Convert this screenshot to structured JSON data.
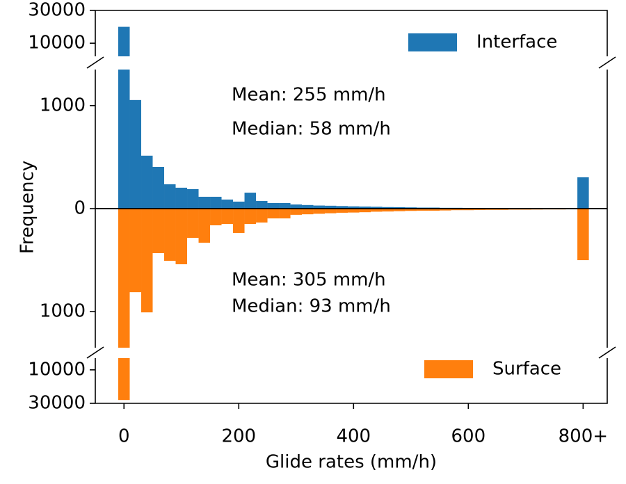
{
  "chart_data": {
    "type": "histogram",
    "xlabel": "Glide rates (mm/h)",
    "ylabel": "Frequency",
    "xlim": [
      -50,
      842
    ],
    "xticks": [
      0,
      200,
      400,
      600,
      {
        "value": 800,
        "label": "800+"
      }
    ],
    "bins": [
      -10,
      10,
      30,
      50,
      70,
      90,
      110,
      130,
      150,
      170,
      190,
      210,
      230,
      250,
      270,
      290,
      310,
      330,
      350,
      370,
      390,
      410,
      430,
      450,
      470,
      490,
      510,
      530,
      550,
      570,
      590,
      610,
      630,
      650,
      670,
      690,
      710,
      730,
      750,
      770,
      790,
      810
    ],
    "series": [
      {
        "name": "Interface",
        "color": "#1f77b4",
        "values": [
          20000,
          1054,
          514,
          405,
          236,
          203,
          189,
          115,
          115,
          88,
          68,
          155,
          74,
          54,
          54,
          40,
          35,
          30,
          28,
          25,
          22,
          20,
          18,
          15,
          14,
          12,
          10,
          10,
          8,
          8,
          7,
          6,
          5,
          5,
          5,
          4,
          4,
          3,
          3,
          3,
          304
        ]
      },
      {
        "name": "Surface",
        "color": "#ff7f0e",
        "values": [
          28000,
          811,
          1007,
          432,
          507,
          540,
          284,
          331,
          162,
          149,
          236,
          149,
          135,
          95,
          95,
          60,
          55,
          50,
          45,
          40,
          38,
          35,
          30,
          28,
          25,
          22,
          20,
          20,
          18,
          15,
          15,
          13,
          12,
          12,
          10,
          10,
          9,
          8,
          8,
          7,
          500
        ]
      }
    ],
    "annotations": [
      "Mean: 255 mm/h",
      "Median: 58 mm/h",
      "Mean: 305 mm/h",
      "Median: 93 mm/h"
    ],
    "panels": [
      {
        "ylim": [
          2000,
          30000
        ],
        "yticks": [
          10000,
          30000
        ]
      },
      {
        "ylim": [
          -1350,
          1350
        ],
        "yticks": [
          1000,
          0,
          {
            "value": -1000,
            "label": "1000"
          }
        ]
      },
      {
        "ylim": [
          3000,
          30000
        ],
        "yticks": [
          10000,
          30000
        ]
      }
    ]
  }
}
